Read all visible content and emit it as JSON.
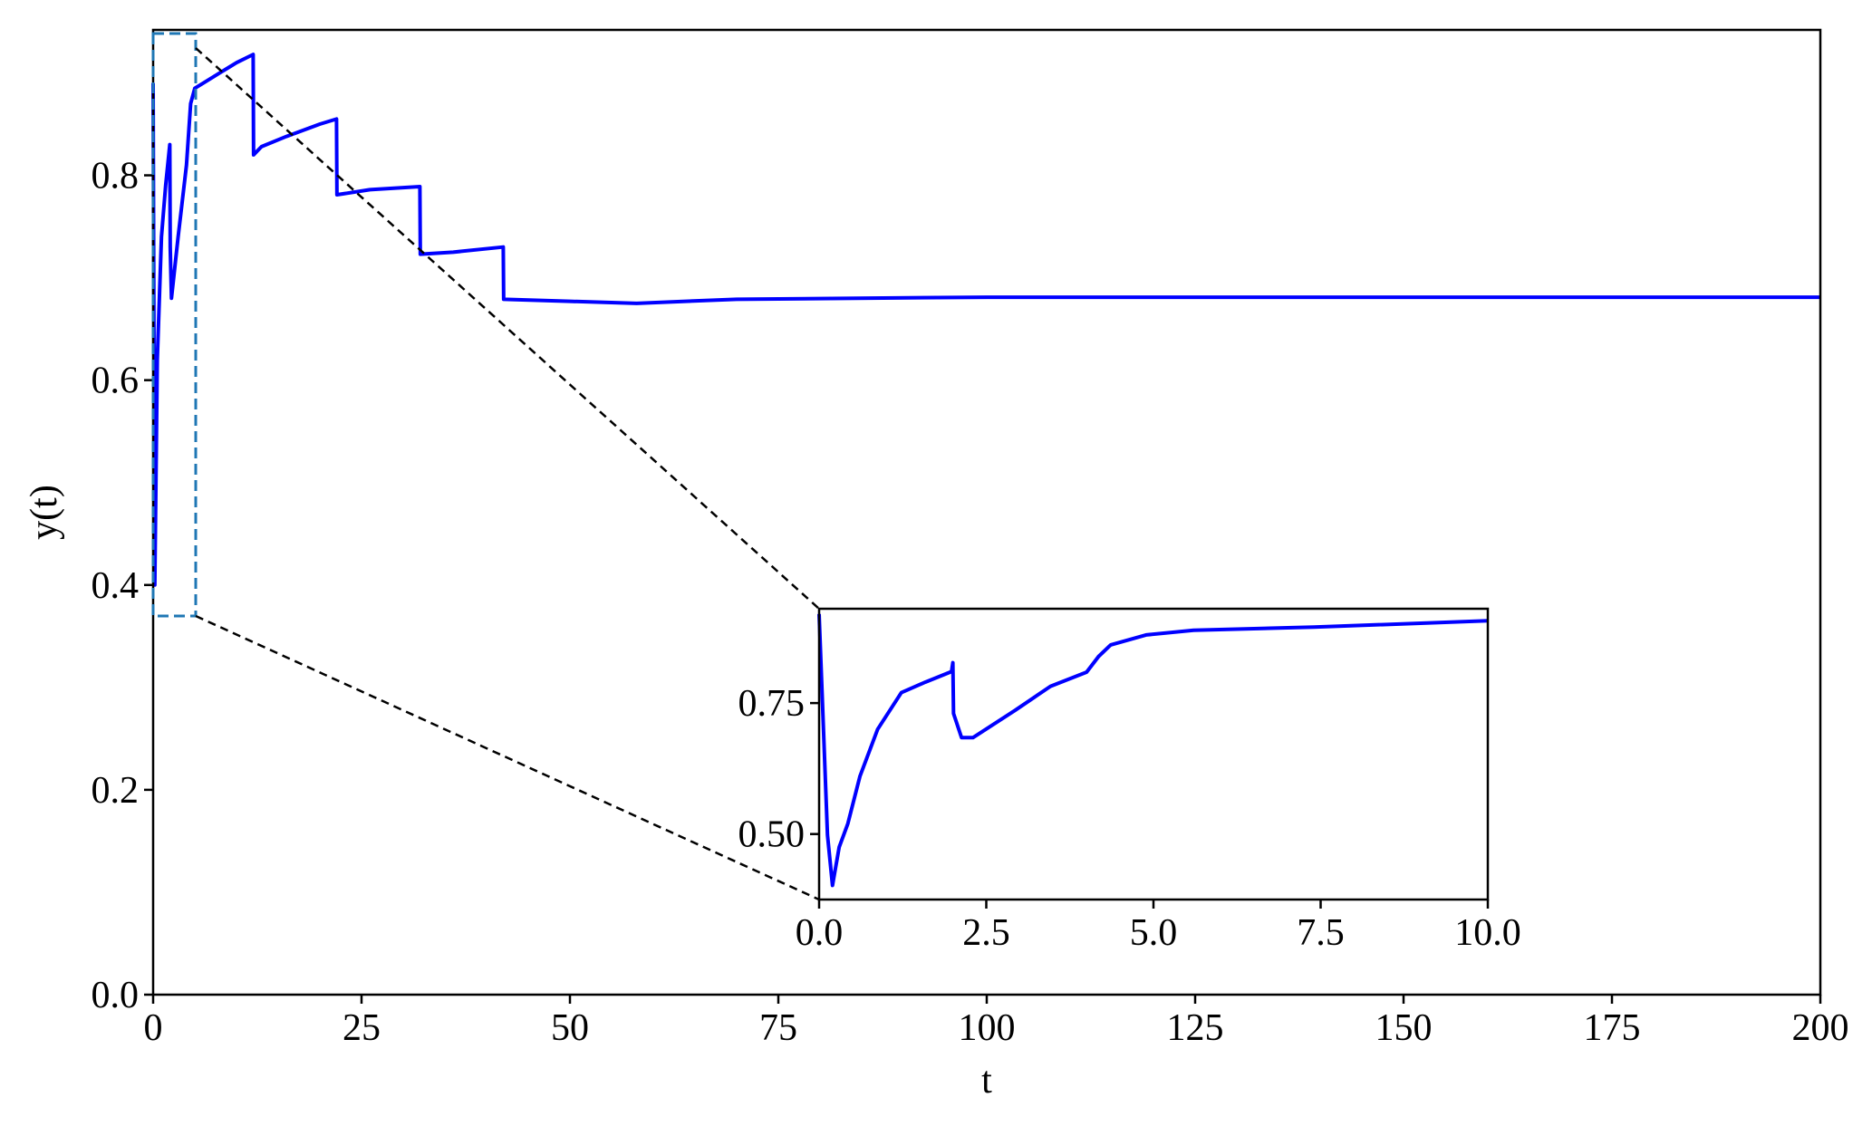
{
  "chart_data": [
    {
      "type": "line",
      "xlabel": "t",
      "ylabel": "y(t)",
      "color": "#0000ff",
      "x": [
        0,
        0.2,
        0.5,
        1,
        1.5,
        2,
        2.05,
        2.2,
        3,
        4,
        4.5,
        5,
        6,
        8,
        10,
        12,
        12.05,
        13,
        16,
        20,
        22,
        22.05,
        26,
        32,
        32.05,
        36,
        42,
        42.05,
        50,
        58,
        70,
        100,
        150,
        200
      ],
      "values": [
        0.89,
        0.4,
        0.62,
        0.74,
        0.79,
        0.83,
        0.73,
        0.68,
        0.74,
        0.81,
        0.87,
        0.885,
        0.89,
        0.9,
        0.91,
        0.918,
        0.82,
        0.828,
        0.838,
        0.85,
        0.855,
        0.781,
        0.786,
        0.789,
        0.723,
        0.725,
        0.73,
        0.679,
        0.677,
        0.675,
        0.679,
        0.681,
        0.681,
        0.681
      ],
      "xlim": [
        0,
        200
      ],
      "ylim": [
        0,
        0.942
      ],
      "xticks": [
        0,
        25,
        50,
        75,
        100,
        125,
        150,
        175,
        200
      ],
      "yticks": [
        {
          "value": 0,
          "label": "0.0"
        },
        0.2,
        0.4,
        0.6,
        0.8
      ]
    },
    {
      "type": "line",
      "color": "#0000ff",
      "x": [
        0,
        0.125,
        0.2,
        0.3,
        0.43,
        0.61,
        0.875,
        1.23,
        1.59,
        1.98,
        2.0,
        2.01,
        2.13,
        2.3,
        2.93,
        3.46,
        4.0,
        4.18,
        4.36,
        4.89,
        5.6,
        7.4,
        10
      ],
      "values": [
        0.92,
        0.498,
        0.402,
        0.475,
        0.52,
        0.61,
        0.7,
        0.77,
        0.79,
        0.81,
        0.827,
        0.73,
        0.684,
        0.684,
        0.736,
        0.782,
        0.809,
        0.839,
        0.861,
        0.88,
        0.889,
        0.895,
        0.907
      ],
      "xlim": [
        0,
        10
      ],
      "ylim": [
        0.375,
        0.93
      ],
      "xticks": [
        {
          "value": 0,
          "label": "0.0"
        },
        2.5,
        {
          "value": 5,
          "label": "5.0"
        },
        7.5,
        {
          "value": 10,
          "label": "10.0"
        }
      ],
      "yticks": [
        {
          "value": 0.5,
          "label": "0.50"
        },
        0.75
      ]
    }
  ]
}
